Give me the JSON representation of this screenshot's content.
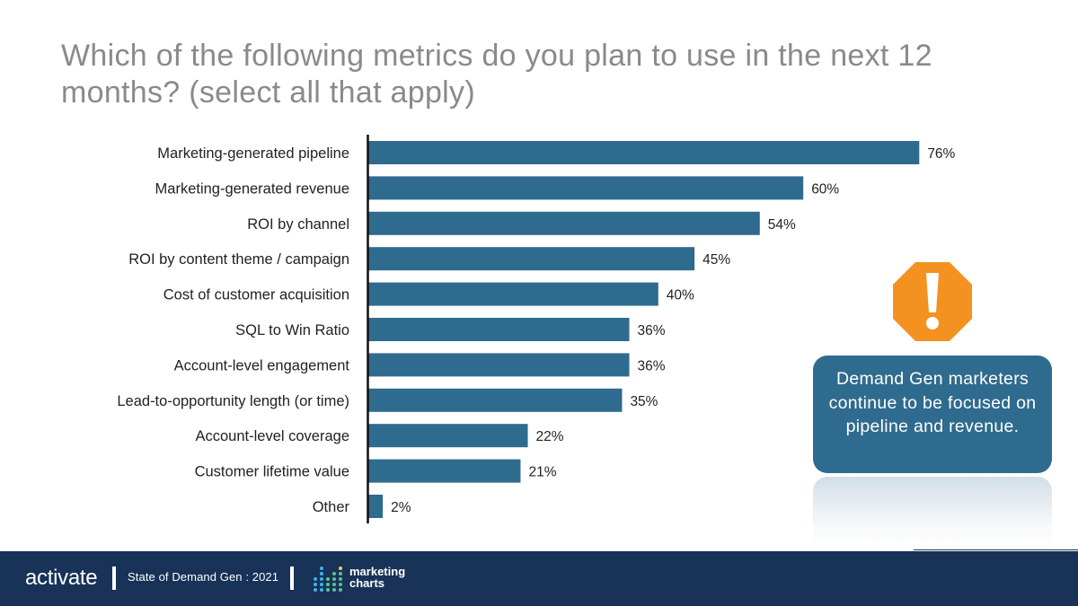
{
  "title": "Which of the following metrics do you plan to use in the next 12 months? (select all that apply)",
  "chart_data": {
    "type": "bar",
    "orientation": "horizontal",
    "title": "Which of the following metrics do you plan to use in the next 12 months? (select all that apply)",
    "categories": [
      "Marketing-generated pipeline",
      "Marketing-generated revenue",
      "ROI by channel",
      "ROI by content theme / campaign",
      "Cost of customer acquisition",
      "SQL to Win Ratio",
      "Account-level engagement",
      "Lead-to-opportunity length (or time)",
      "Account-level coverage",
      "Customer lifetime value",
      "Other"
    ],
    "values": [
      76,
      60,
      54,
      45,
      40,
      36,
      36,
      35,
      22,
      21,
      2
    ],
    "value_labels": [
      "76%",
      "60%",
      "54%",
      "45%",
      "40%",
      "36%",
      "36%",
      "35%",
      "22%",
      "21%",
      "2%"
    ],
    "xlim": [
      0,
      100
    ],
    "unit": "%",
    "xlabel": "",
    "ylabel": "",
    "grid": false,
    "bar_color": "#2f6b8e"
  },
  "callout": {
    "icon": "exclamation-octagon-icon",
    "icon_color": "#f39221",
    "text": "Demand Gen marketers continue to be focused on pipeline and revenue."
  },
  "footer": {
    "brand": "activate",
    "report": "State of Demand Gen : 2021",
    "partner_line1": "marketing",
    "partner_line2": "charts",
    "background": "#183258"
  }
}
